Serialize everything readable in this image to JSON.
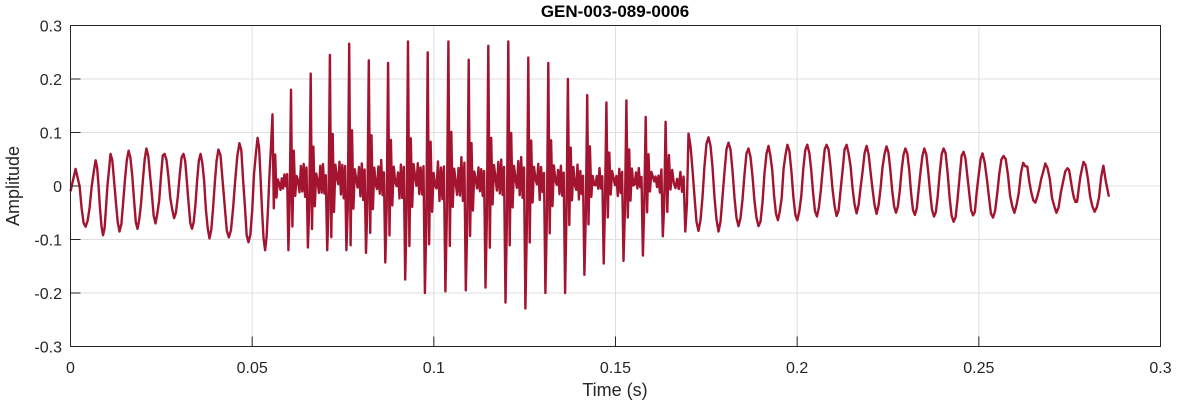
{
  "chart_data": {
    "type": "line",
    "title": "GEN-003-089-0006",
    "xlabel": "Time (s)",
    "ylabel": "Amplitude",
    "xlim": [
      0,
      0.3
    ],
    "ylim": [
      -0.3,
      0.3
    ],
    "xticks": [
      0,
      0.05,
      0.1,
      0.15,
      0.2,
      0.25,
      0.3
    ],
    "xtick_labels": [
      "0",
      "0.05",
      "0.1",
      "0.15",
      "0.2",
      "0.25",
      "0.3"
    ],
    "yticks": [
      -0.3,
      -0.2,
      -0.1,
      0,
      0.1,
      0.2,
      0.3
    ],
    "ytick_labels": [
      "-0.3",
      "-0.2",
      "-0.1",
      "0",
      "0.1",
      "0.2",
      "0.3"
    ],
    "grid": true,
    "legend": "none",
    "line_color": "#A2142F",
    "series": [
      {
        "cycle_fields": [
          "peak_time_s",
          "peak_amplitude",
          "trough_amplitude"
        ],
        "cycles": [
          [
            0.0014,
            0.032,
            -0.076
          ],
          [
            0.0069,
            0.048,
            -0.092
          ],
          [
            0.011,
            0.06,
            -0.085
          ],
          [
            0.016,
            0.066,
            -0.08
          ],
          [
            0.0209,
            0.07,
            -0.07
          ],
          [
            0.0259,
            0.06,
            -0.06
          ],
          [
            0.0311,
            0.06,
            -0.08
          ],
          [
            0.0358,
            0.06,
            -0.098
          ],
          [
            0.0407,
            0.068,
            -0.096
          ],
          [
            0.0465,
            0.08,
            -0.105
          ],
          [
            0.0515,
            0.09,
            -0.12
          ],
          [
            0.0556,
            0.134,
            -0.12
          ],
          [
            0.0607,
            0.18,
            -0.115
          ],
          [
            0.0661,
            0.21,
            -0.12
          ],
          [
            0.0714,
            0.245,
            -0.12
          ],
          [
            0.0767,
            0.266,
            -0.125
          ],
          [
            0.0821,
            0.235,
            -0.143
          ],
          [
            0.0874,
            0.23,
            -0.175
          ],
          [
            0.0929,
            0.27,
            -0.2
          ],
          [
            0.0983,
            0.25,
            -0.197
          ],
          [
            0.104,
            0.27,
            -0.195
          ],
          [
            0.1096,
            0.236,
            -0.19
          ],
          [
            0.115,
            0.262,
            -0.218
          ],
          [
            0.1205,
            0.27,
            -0.229
          ],
          [
            0.126,
            0.24,
            -0.2
          ],
          [
            0.1315,
            0.23,
            -0.2
          ],
          [
            0.1369,
            0.2,
            -0.166
          ],
          [
            0.1422,
            0.17,
            -0.145
          ],
          [
            0.1475,
            0.156,
            -0.14
          ],
          [
            0.153,
            0.16,
            -0.13
          ],
          [
            0.1583,
            0.129,
            -0.094
          ],
          [
            0.1638,
            0.12,
            -0.085
          ],
          [
            0.1701,
            0.098,
            -0.084
          ],
          [
            0.1756,
            0.091,
            -0.085
          ],
          [
            0.1811,
            0.081,
            -0.075
          ],
          [
            0.1866,
            0.07,
            -0.075
          ],
          [
            0.1921,
            0.075,
            -0.064
          ],
          [
            0.1973,
            0.077,
            -0.064
          ],
          [
            0.2028,
            0.077,
            -0.057
          ],
          [
            0.2081,
            0.077,
            -0.056
          ],
          [
            0.2136,
            0.077,
            -0.051
          ],
          [
            0.2191,
            0.075,
            -0.052
          ],
          [
            0.2246,
            0.074,
            -0.05
          ],
          [
            0.2298,
            0.07,
            -0.054
          ],
          [
            0.235,
            0.07,
            -0.057
          ],
          [
            0.2403,
            0.07,
            -0.067
          ],
          [
            0.2458,
            0.064,
            -0.055
          ],
          [
            0.251,
            0.061,
            -0.059
          ],
          [
            0.2568,
            0.056,
            -0.05
          ],
          [
            0.2628,
            0.037,
            -0.031
          ],
          [
            0.2683,
            0.042,
            -0.05
          ],
          [
            0.2744,
            0.033,
            -0.03
          ],
          [
            0.2788,
            0.045,
            -0.048
          ],
          [
            0.2849,
            0.011,
            -0.02
          ]
        ],
        "end": [
          0.2858,
          -0.02
        ]
      }
    ]
  }
}
